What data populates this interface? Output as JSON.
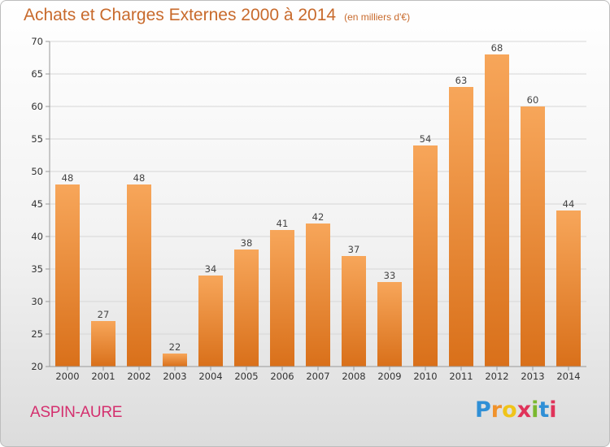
{
  "chart_data": {
    "type": "bar",
    "title": "Achats et Charges Externes 2000 à 2014",
    "subtitle": "(en milliers d'€)",
    "categories": [
      "2000",
      "2001",
      "2002",
      "2003",
      "2004",
      "2005",
      "2006",
      "2007",
      "2008",
      "2009",
      "2010",
      "2011",
      "2012",
      "2013",
      "2014"
    ],
    "values": [
      48,
      27,
      48,
      22,
      34,
      38,
      41,
      42,
      37,
      33,
      54,
      63,
      68,
      60,
      44
    ],
    "ylim": [
      20,
      70
    ],
    "yticks": [
      20,
      25,
      30,
      35,
      40,
      45,
      50,
      55,
      60,
      65,
      70
    ],
    "grid": true,
    "bar_color_top": "#f7a65a",
    "bar_color_bottom": "#d9701a"
  },
  "location": "ASPIN-AURE",
  "logo": {
    "text": "Proxiti",
    "letters": [
      "P",
      "r",
      "o",
      "x",
      "i",
      "t",
      "i"
    ],
    "colors": [
      "#2f8fd6",
      "#f0922b",
      "#f0c419",
      "#e0335a",
      "#7ab82f",
      "#2f8fd6",
      "#e0335a"
    ]
  }
}
